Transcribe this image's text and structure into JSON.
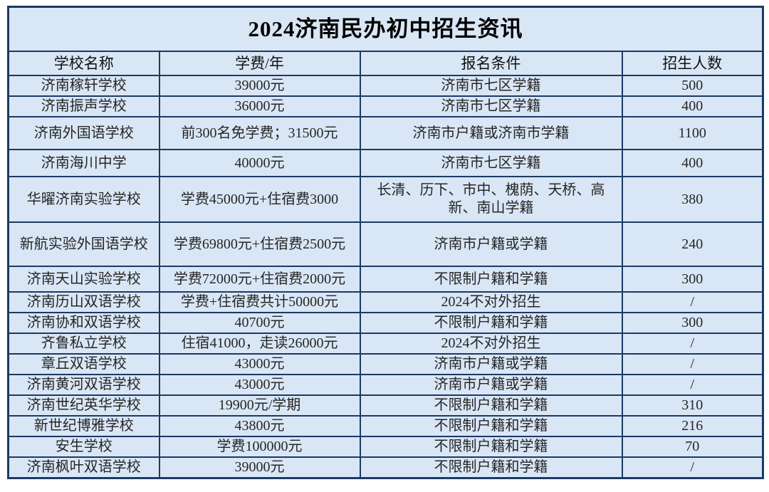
{
  "title": "2024济南民办初中招生资讯",
  "colors": {
    "cell_background": "#d9e6f5",
    "border": "#1c3a64",
    "page_background": "#ffffff",
    "title_text": "#000000",
    "body_text": "#262626"
  },
  "table": {
    "headers": [
      "学校名称",
      "学费/年",
      "报名条件",
      "招生人数"
    ],
    "rows": [
      [
        "济南稼轩学校",
        "39000元",
        "济南市七区学籍",
        "500"
      ],
      [
        "济南振声学校",
        "36000元",
        "济南市七区学籍",
        "400"
      ],
      [
        "济南外国语学校",
        "前300名免学费；31500元",
        "济南市户籍或济南市学籍",
        "1100"
      ],
      [
        "济南海川中学",
        "40000元",
        "济南市七区学籍",
        "400"
      ],
      [
        "华曜济南实验学校",
        "学费45000元+住宿费3000",
        "长清、历下、市中、槐荫、天桥、高新、南山学籍",
        "380"
      ],
      [
        "新航实验外国语学校",
        "学费69800元+住宿费2500元",
        "济南市户籍或学籍",
        "240"
      ],
      [
        "济南天山实验学校",
        "学费72000元+住宿费2000元",
        "不限制户籍和学籍",
        "300"
      ],
      [
        "济南历山双语学校",
        "学费+住宿费共计50000元",
        "2024不对外招生",
        "/"
      ],
      [
        "济南协和双语学校",
        "40700元",
        "不限制户籍和学籍",
        "300"
      ],
      [
        "齐鲁私立学校",
        "住宿41000，走读26000元",
        "2024不对外招生",
        "/"
      ],
      [
        "章丘双语学校",
        "43000元",
        "济南市户籍或学籍",
        "/"
      ],
      [
        "济南黄河双语学校",
        "43000元",
        "济南市户籍或学籍",
        "/"
      ],
      [
        "济南世纪英华学校",
        "19900元/学期",
        "不限制户籍和学籍",
        "310"
      ],
      [
        "新世纪博雅学校",
        "43800元",
        "不限制户籍和学籍",
        "216"
      ],
      [
        "安生学校",
        "学费100000元",
        "不限制户籍和学籍",
        "70"
      ],
      [
        "济南枫叶双语学校",
        "39000元",
        "不限制户籍和学籍",
        "/"
      ]
    ]
  }
}
